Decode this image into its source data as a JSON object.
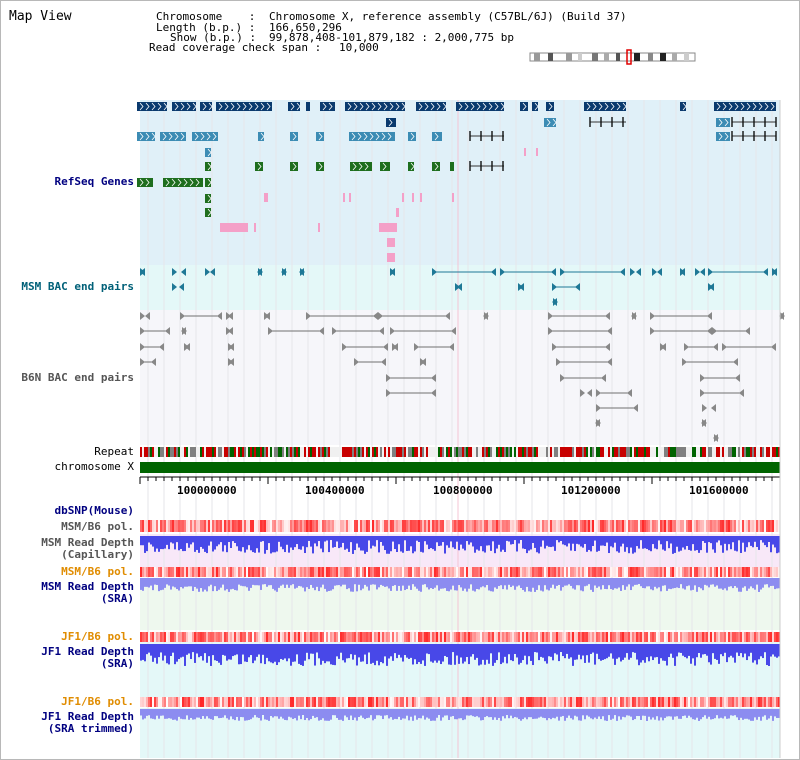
{
  "title": "Map View",
  "header": {
    "chromosome_label": "Chromosome    :",
    "chromosome_value": "Chromosome X, reference assembly (C57BL/6J) (Build 37)",
    "length_label": "Length (b.p.) :",
    "length_value": "166,650,296",
    "show_label": "Show (b.p.) :",
    "show_value": "99,878,408-101,879,182 : 2,000,775 bp",
    "span_label": "Read coverage check span :",
    "span_value": "10,000"
  },
  "tracks": {
    "refseq": "RefSeq Genes",
    "msm_bac": "MSM BAC end pairs",
    "b6n_bac": "B6N BAC end pairs",
    "repeat": "Repeat",
    "chromosome": "chromosome X",
    "dbsnp": "dbSNP(Mouse)",
    "msm_b6_pol_1": "MSM/B6 pol.",
    "msm_depth_cap_1": "MSM Read Depth",
    "msm_depth_cap_2": "(Capillary)",
    "msm_b6_pol_2": "MSM/B6 pol.",
    "msm_depth_sra_1": "MSM Read Depth",
    "msm_depth_sra_2": "(SRA)",
    "jf1_b6_pol_1": "JF1/B6 pol.",
    "jf1_depth_sra_1": "JF1 Read Depth",
    "jf1_depth_sra_2": "(SRA)",
    "jf1_b6_pol_2": "JF1/B6 pol.",
    "jf1_depth_trim_1": "JF1 Read Depth",
    "jf1_depth_trim_2": "(SRA trimmed)"
  },
  "axis": {
    "ticks": [
      "100000000",
      "100400000",
      "100800000",
      "101200000",
      "101600000"
    ]
  },
  "colors": {
    "refseq_bg": "#e0f0f8",
    "msm_bac_bg": "#e4f8f8",
    "b6n_bac_bg": "#f6f6fa",
    "gene_dark": "#0a3a6e",
    "gene_mid": "#3c8cb4",
    "gene_green": "#1e6e1e",
    "gene_pink": "#f4a0c8",
    "bac_teal": "#1e7896",
    "bac_gray": "#707070",
    "chrom_green": "#006400",
    "dbsnp_label": "#000080",
    "pol_label": "#e08c00",
    "depth_blue": "#4848e8",
    "depth_light": "#8c8cf0"
  }
}
